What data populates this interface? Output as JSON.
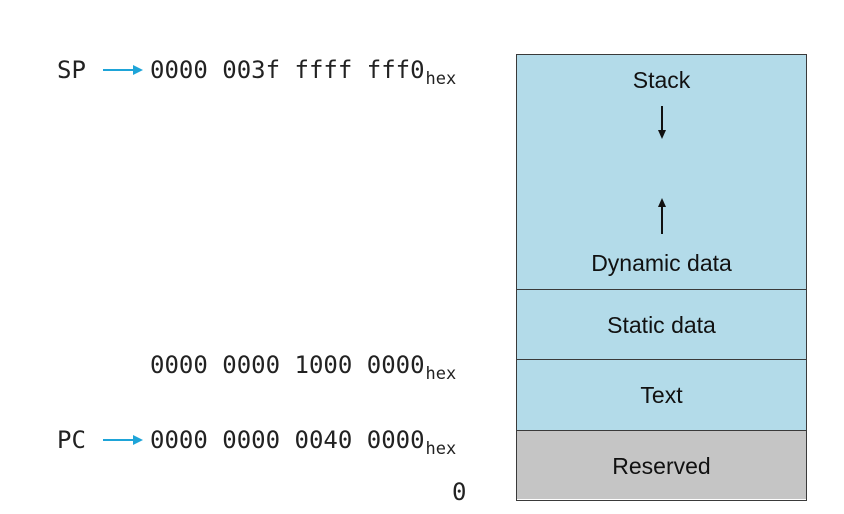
{
  "registers": {
    "sp": "SP",
    "pc": "PC"
  },
  "addresses": {
    "stack_top": "0000 003f ffff fff0",
    "static_start": "0000 0000 1000 0000",
    "text_start": "0000 0000 0040 0000",
    "hex_suffix": "hex",
    "zero": "0"
  },
  "segments": {
    "stack": "Stack",
    "dynamic": "Dynamic data",
    "static": "Static data",
    "text": "Text",
    "reserved": "Reserved"
  },
  "colors": {
    "segment_fill": "#b3dbe9",
    "reserved_fill": "#c5c5c5",
    "pointer_arrow": "#1ea4d8"
  }
}
